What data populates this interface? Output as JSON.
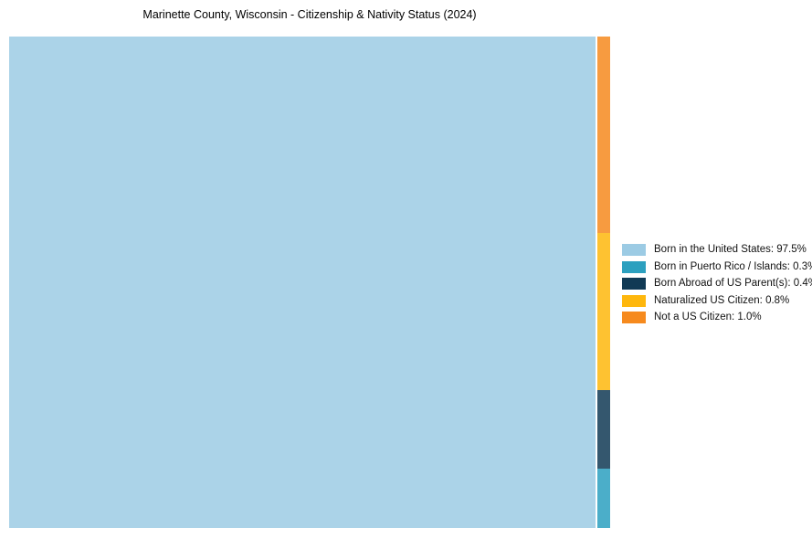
{
  "title": "Marinette County, Wisconsin - Citizenship & Nativity Status (2024)",
  "chart_data": {
    "type": "treemap",
    "title": "Marinette County, Wisconsin - Citizenship & Nativity Status (2024)",
    "legend_position": "right",
    "rect_opacity": 0.85,
    "items": [
      {
        "label": "Born in the United States",
        "value": 97.5,
        "color": "#9CCBE4",
        "legend_text": "Born in the United States: 97.5%"
      },
      {
        "label": "Born in Puerto Rico / Islands",
        "value": 0.3,
        "color": "#2CA0BF",
        "legend_text": "Born in Puerto Rico / Islands: 0.3%"
      },
      {
        "label": "Born Abroad of US Parent(s)",
        "value": 0.4,
        "color": "#113A55",
        "legend_text": "Born Abroad of US Parent(s): 0.4%"
      },
      {
        "label": "Naturalized US Citizen",
        "value": 0.8,
        "color": "#FEB70D",
        "legend_text": "Naturalized US Citizen: 0.8%"
      },
      {
        "label": "Not a US Citizen",
        "value": 1.0,
        "color": "#F68A1E",
        "legend_text": "Not a US Citizen: 1.0%"
      }
    ],
    "layout": {
      "main_rect_item": 0,
      "strip_top_to_bottom": [
        "Not a US Citizen",
        "Naturalized US Citizen",
        "Born Abroad of US Parent(s)",
        "Born in Puerto Rico / Islands"
      ]
    }
  }
}
